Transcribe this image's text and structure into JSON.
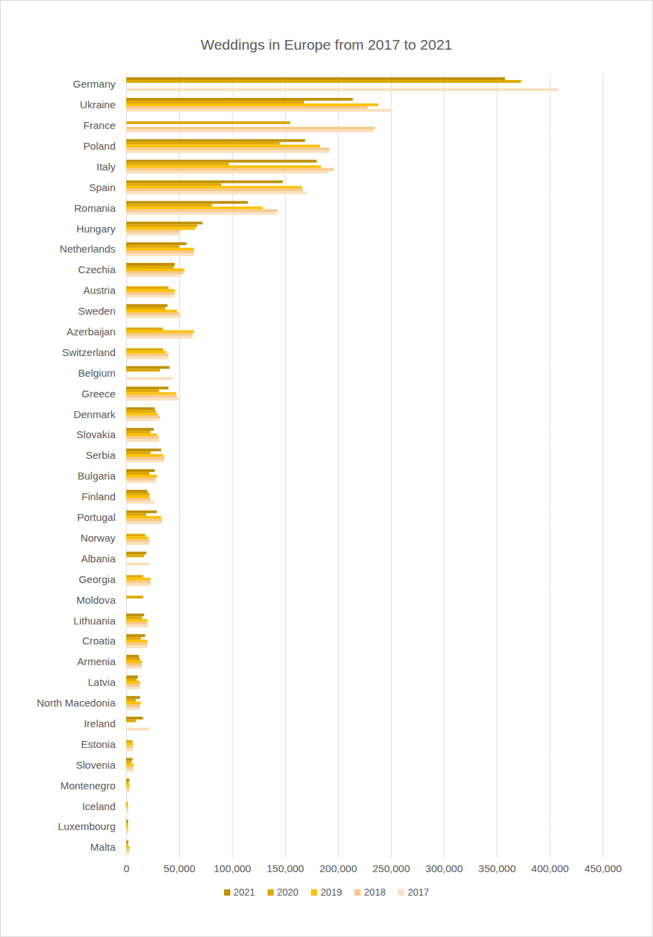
{
  "chart_data": {
    "type": "bar",
    "orientation": "horizontal",
    "title": "Weddings in Europe from 2017 to 2021",
    "categories": [
      "Germany",
      "Ukraine",
      "France",
      "Poland",
      "Italy",
      "Spain",
      "Romania",
      "Hungary",
      "Netherlands",
      "Czechia",
      "Austria",
      "Sweden",
      "Azerbaijan",
      "Switzerland",
      "Belgium",
      "Greece",
      "Denmark",
      "Slovakia",
      "Serbia",
      "Bulgaria",
      "Finland",
      "Portugal",
      "Norway",
      "Albania",
      "Georgia",
      "Moldova",
      "Lithuania",
      "Croatia",
      "Armenia",
      "Latvia",
      "North Macedonia",
      "Ireland",
      "Estonia",
      "Slovenia",
      "Montenegro",
      "Iceland",
      "Luxembourg",
      "Malta"
    ],
    "series": [
      {
        "name": "2021",
        "color": "#bf9000",
        "values": [
          357800,
          214000,
          null,
          169000,
          180000,
          148000,
          115000,
          72000,
          57000,
          46000,
          null,
          39000,
          null,
          null,
          41000,
          40000,
          27000,
          26000,
          33000,
          27000,
          20000,
          29000,
          null,
          19000,
          null,
          null,
          17000,
          18000,
          12000,
          11000,
          13000,
          16000,
          null,
          6000,
          3000,
          null,
          2000,
          2000
        ]
      },
      {
        "name": "2020",
        "color": "#dfa800",
        "values": [
          373000,
          168000,
          155000,
          145000,
          97000,
          90000,
          81000,
          67000,
          50000,
          45000,
          40000,
          37000,
          35000,
          35000,
          32000,
          31000,
          28000,
          23000,
          23000,
          22000,
          22000,
          19000,
          18000,
          17000,
          16000,
          16000,
          15000,
          14000,
          13000,
          10000,
          9000,
          9000,
          6000,
          5000,
          2500,
          1500,
          1600,
          1600
        ]
      },
      {
        "name": "2019",
        "color": "#ffc000",
        "values": [
          null,
          238000,
          null,
          183000,
          184000,
          166000,
          129000,
          65000,
          64000,
          55000,
          46000,
          48000,
          64000,
          38000,
          null,
          47000,
          30000,
          29000,
          35000,
          29000,
          22000,
          33000,
          21000,
          null,
          23000,
          null,
          20000,
          20000,
          15000,
          13000,
          14000,
          null,
          6500,
          7000,
          3500,
          2000,
          2000,
          3000
        ]
      },
      {
        "name": "2018",
        "color": "#f7c98a",
        "values": [
          null,
          228000,
          235000,
          192000,
          196000,
          167000,
          143000,
          51000,
          64000,
          54000,
          46000,
          50000,
          63000,
          40000,
          null,
          48000,
          32000,
          31000,
          36000,
          28000,
          23000,
          34000,
          22000,
          null,
          23000,
          null,
          20000,
          20000,
          15000,
          13000,
          13000,
          null,
          6500,
          7000,
          3300,
          1800,
          2000,
          3000
        ]
      },
      {
        "name": "2017",
        "color": "#fbe0bd",
        "values": [
          408000,
          250000,
          233000,
          192000,
          191000,
          171000,
          142000,
          50000,
          64000,
          52000,
          45000,
          52000,
          63000,
          40000,
          44000,
          50000,
          31000,
          31000,
          36000,
          28000,
          27000,
          34000,
          22000,
          22000,
          23000,
          null,
          21000,
          20000,
          15000,
          13000,
          13000,
          22000,
          6500,
          7000,
          3300,
          1800,
          2000,
          3000
        ]
      }
    ],
    "xlim": [
      0,
      450000
    ],
    "xticks": [
      0,
      {
        "value": 50000,
        "label": "50,000"
      },
      {
        "value": 100000,
        "label": "100,000"
      },
      {
        "value": 150000,
        "label": "150,000"
      },
      {
        "value": 200000,
        "label": "200,000"
      },
      {
        "value": 250000,
        "label": "250,000"
      },
      {
        "value": 300000,
        "label": "300,000"
      },
      {
        "value": 350000,
        "label": "350,000"
      },
      {
        "value": 400000,
        "label": "400,000"
      },
      {
        "value": 450000,
        "label": "450,000"
      }
    ],
    "grid": true,
    "legend": "bottom"
  }
}
